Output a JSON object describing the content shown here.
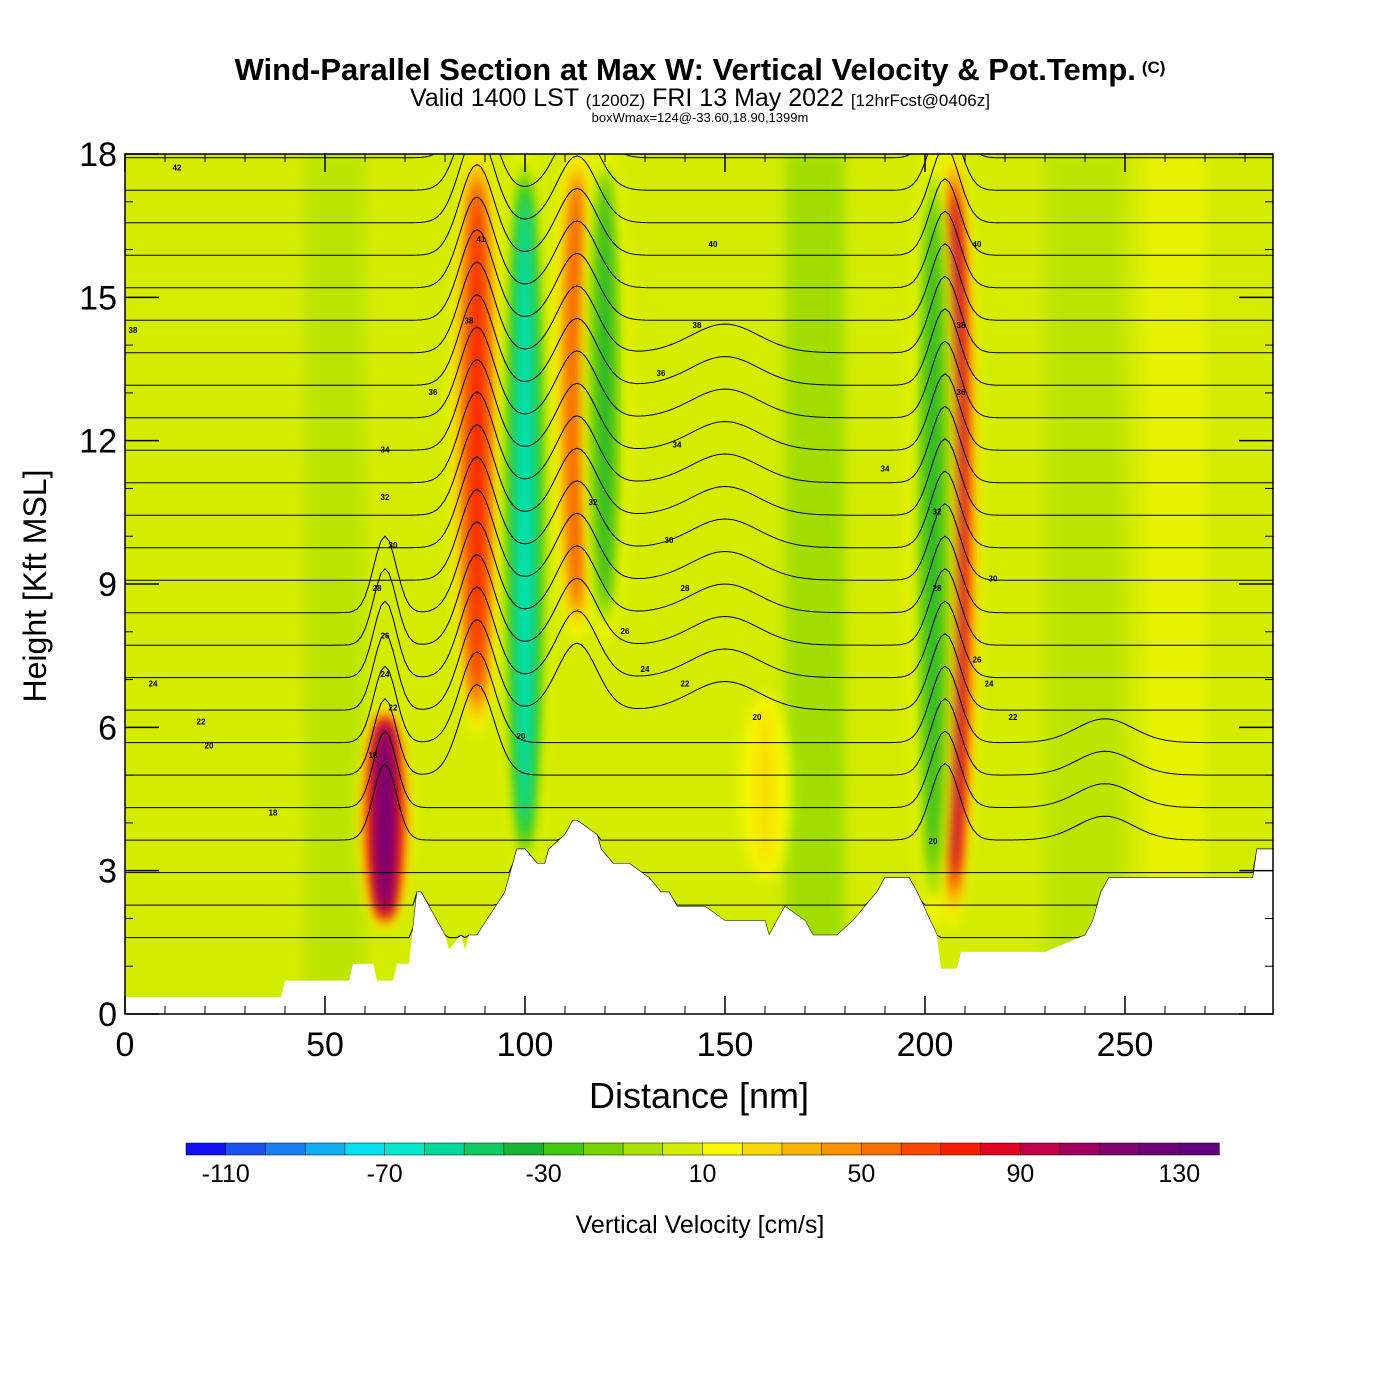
{
  "title": {
    "main": "Wind-Parallel Section at Max W: Vertical Velocity & Pot.Temp.",
    "copyright": "(C)",
    "valid_prefix": "Valid 1400 LST",
    "valid_utc": "(1200Z)",
    "valid_date": "FRI 13 May 2022",
    "forecast": "[12hrFcst@0406z]",
    "boxwmax": "boxWmax=124@-33.60,18.90,1399m"
  },
  "chart_data": {
    "type": "heatmap",
    "xlabel": "Distance [nm]",
    "ylabel": "Height [Kft MSL]",
    "xlim": [
      0,
      287
    ],
    "ylim": [
      0,
      18
    ],
    "x_ticks": [
      0,
      50,
      100,
      150,
      200,
      250
    ],
    "x_tick_labels": [
      "0",
      "50",
      "100",
      "150",
      "200",
      "250"
    ],
    "y_ticks": [
      0,
      3,
      6,
      9,
      12,
      15,
      18
    ],
    "y_tick_labels": [
      "0",
      "3",
      "6",
      "9",
      "12",
      "15",
      "18"
    ],
    "colorbar": {
      "label": "Vertical Velocity [cm/s]",
      "min": -120,
      "max": 140,
      "step": 10,
      "tick_values": [
        -110,
        -70,
        -30,
        10,
        50,
        90,
        130
      ],
      "tick_labels": [
        "-110",
        "-70",
        "-30",
        "10",
        "50",
        "90",
        "130"
      ],
      "colors": [
        "#1010f0",
        "#1a50f0",
        "#1c7ef0",
        "#10aef0",
        "#00e0f0",
        "#00e8c8",
        "#00d89a",
        "#10c864",
        "#1ab432",
        "#3ec814",
        "#78d400",
        "#a8e000",
        "#d4ec00",
        "#f8f800",
        "#f8d800",
        "#f8b400",
        "#f89000",
        "#f86e00",
        "#f84800",
        "#f81c00",
        "#e40020",
        "#c00048",
        "#a00060",
        "#800070",
        "#700078",
        "#600080"
      ]
    },
    "updrafts": [
      {
        "x": 65,
        "z_min": 2.0,
        "z_max": 6.2,
        "w": 124
      },
      {
        "x": 88,
        "z_min": 6.0,
        "z_max": 18,
        "w": 70
      },
      {
        "x": 113,
        "z_min": 8.0,
        "z_max": 18,
        "w": 60
      },
      {
        "x": 160,
        "z_min": 3.0,
        "z_max": 6.5,
        "w": 20
      },
      {
        "x": 207,
        "z_min": 2.0,
        "z_max": 18,
        "w": 100
      }
    ],
    "downdrafts": [
      {
        "x": 100,
        "z_min": 3.0,
        "z_max": 18,
        "w": -70
      },
      {
        "x": 120,
        "z_min": 8.0,
        "z_max": 18,
        "w": -40
      },
      {
        "x": 202,
        "z_min": 2.0,
        "z_max": 18,
        "w": -40
      }
    ],
    "terrain": {
      "x": [
        0,
        10,
        20,
        30,
        39,
        40,
        50,
        56,
        57,
        62,
        63,
        67,
        68,
        71,
        73,
        74,
        80,
        81,
        84,
        85,
        86,
        88,
        95,
        96,
        98,
        100,
        103,
        105,
        106,
        110,
        112,
        113,
        118,
        119,
        122,
        126,
        131,
        134,
        136,
        138,
        142,
        145,
        150,
        160,
        161,
        163,
        165,
        170,
        172,
        178,
        182,
        188,
        190,
        196,
        198,
        203,
        204,
        206,
        208,
        209,
        230,
        240,
        242,
        243,
        244,
        246,
        248,
        253,
        260,
        282,
        283,
        287
      ],
      "z": [
        0.35,
        0.35,
        0.35,
        0.35,
        0.35,
        0.7,
        0.7,
        0.7,
        1.05,
        1.05,
        0.7,
        0.7,
        1.05,
        1.05,
        2.55,
        2.55,
        1.65,
        1.35,
        1.65,
        1.35,
        1.65,
        1.65,
        2.55,
        2.85,
        3.45,
        3.45,
        3.15,
        3.15,
        3.45,
        3.75,
        4.05,
        4.05,
        3.75,
        3.45,
        3.15,
        3.15,
        2.85,
        2.55,
        2.55,
        2.25,
        2.25,
        2.25,
        1.95,
        1.95,
        1.65,
        1.95,
        2.25,
        1.95,
        1.65,
        1.65,
        1.95,
        2.55,
        2.85,
        2.85,
        2.55,
        1.65,
        0.95,
        0.95,
        0.95,
        1.3,
        1.3,
        1.65,
        1.95,
        2.25,
        2.55,
        2.85,
        2.85,
        2.85,
        2.85,
        2.85,
        3.45,
        3.45
      ]
    },
    "theta_contour_levels": [
      19,
      20,
      21,
      22,
      23,
      24,
      25,
      26,
      27,
      28,
      29,
      30,
      31,
      32,
      33,
      34,
      35,
      36,
      37,
      38,
      39,
      40,
      41,
      42,
      43
    ],
    "theta_labels": [
      {
        "x": 13,
        "z": 17.7,
        "text": "42"
      },
      {
        "x": 2,
        "z": 14.3,
        "text": "38"
      },
      {
        "x": 89,
        "z": 16.2,
        "text": "41"
      },
      {
        "x": 86,
        "z": 14.5,
        "text": "38"
      },
      {
        "x": 77,
        "z": 13.0,
        "text": "36"
      },
      {
        "x": 65,
        "z": 11.8,
        "text": "34"
      },
      {
        "x": 65,
        "z": 10.8,
        "text": "32"
      },
      {
        "x": 67,
        "z": 9.8,
        "text": "30"
      },
      {
        "x": 63,
        "z": 8.9,
        "text": "28"
      },
      {
        "x": 65,
        "z": 7.9,
        "text": "26"
      },
      {
        "x": 65,
        "z": 7.1,
        "text": "24"
      },
      {
        "x": 67,
        "z": 6.4,
        "text": "22"
      },
      {
        "x": 62,
        "z": 5.4,
        "text": "18"
      },
      {
        "x": 37,
        "z": 4.2,
        "text": "18"
      },
      {
        "x": 7,
        "z": 6.9,
        "text": "24"
      },
      {
        "x": 19,
        "z": 6.1,
        "text": "22"
      },
      {
        "x": 21,
        "z": 5.6,
        "text": "20"
      },
      {
        "x": 147,
        "z": 16.1,
        "text": "40"
      },
      {
        "x": 143,
        "z": 14.4,
        "text": "38"
      },
      {
        "x": 134,
        "z": 13.4,
        "text": "36"
      },
      {
        "x": 138,
        "z": 11.9,
        "text": "34"
      },
      {
        "x": 117,
        "z": 10.7,
        "text": "32"
      },
      {
        "x": 136,
        "z": 9.9,
        "text": "30"
      },
      {
        "x": 140,
        "z": 8.9,
        "text": "28"
      },
      {
        "x": 125,
        "z": 8.0,
        "text": "26"
      },
      {
        "x": 130,
        "z": 7.2,
        "text": "24"
      },
      {
        "x": 140,
        "z": 6.9,
        "text": "22"
      },
      {
        "x": 158,
        "z": 6.2,
        "text": "20"
      },
      {
        "x": 99,
        "z": 5.8,
        "text": "20"
      },
      {
        "x": 213,
        "z": 16.1,
        "text": "40"
      },
      {
        "x": 209,
        "z": 14.4,
        "text": "38"
      },
      {
        "x": 209,
        "z": 13.0,
        "text": "36"
      },
      {
        "x": 190,
        "z": 11.4,
        "text": "34"
      },
      {
        "x": 203,
        "z": 10.5,
        "text": "32"
      },
      {
        "x": 217,
        "z": 9.1,
        "text": "30"
      },
      {
        "x": 203,
        "z": 8.9,
        "text": "28"
      },
      {
        "x": 213,
        "z": 7.4,
        "text": "26"
      },
      {
        "x": 216,
        "z": 6.9,
        "text": "24"
      },
      {
        "x": 222,
        "z": 6.2,
        "text": "22"
      },
      {
        "x": 202,
        "z": 3.6,
        "text": "20"
      }
    ]
  }
}
